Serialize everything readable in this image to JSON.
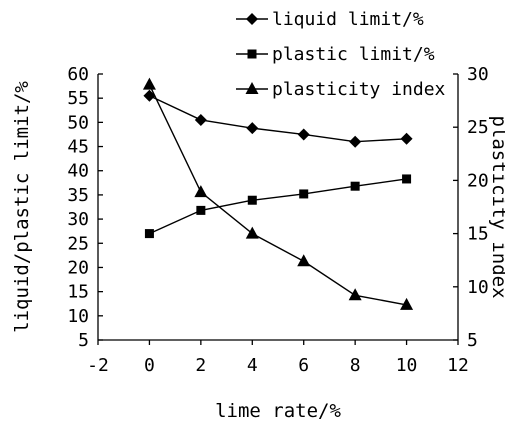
{
  "chart_data": {
    "type": "line",
    "xlabel": "lime rate/%",
    "ylabel_left": "liquid/plastic limit/%",
    "ylabel_right": "plasticity index",
    "xlim": [
      -2,
      12
    ],
    "xticks": [
      -2,
      0,
      2,
      4,
      6,
      8,
      10,
      12
    ],
    "ylim_left": [
      5,
      60
    ],
    "yticks_left": [
      5,
      10,
      15,
      20,
      25,
      30,
      35,
      40,
      45,
      50,
      55,
      60
    ],
    "ylim_right": [
      5,
      30
    ],
    "yticks_right": [
      5,
      10,
      15,
      20,
      25,
      30
    ],
    "legend_position": "top-right",
    "grid": false,
    "series": [
      {
        "name": "liquid limit/%",
        "marker": "diamond",
        "axis": "left",
        "x": [
          0,
          2,
          4,
          6,
          8,
          10
        ],
        "values": [
          55.5,
          50.5,
          48.8,
          47.5,
          46.0,
          46.6
        ]
      },
      {
        "name": "plastic limit/%",
        "marker": "square",
        "axis": "left",
        "x": [
          0,
          2,
          4,
          6,
          8,
          10
        ],
        "values": [
          27.0,
          31.8,
          33.9,
          35.2,
          36.8,
          38.3
        ]
      },
      {
        "name": "plasticity index",
        "marker": "triangle",
        "axis": "right",
        "x": [
          0,
          2,
          4,
          6,
          8,
          10
        ],
        "values": [
          29.0,
          18.9,
          15.0,
          12.4,
          9.2,
          8.3
        ]
      }
    ]
  }
}
